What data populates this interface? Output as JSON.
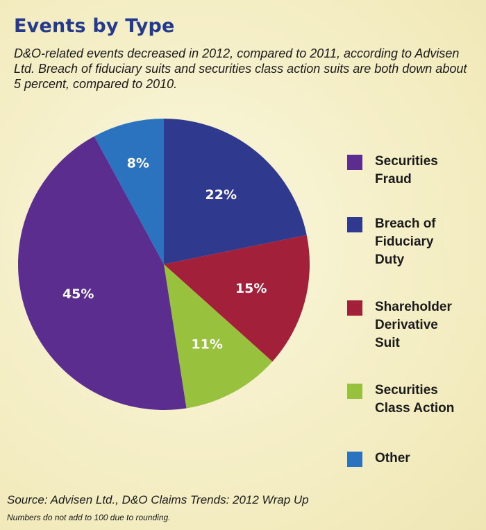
{
  "chart_data": {
    "type": "pie",
    "title": "Events by Type",
    "subtitle": "D&O-related events decreased in 2012, compared to 2011, according to Advisen Ltd. Breach of fiduciary suits and securities class action suits are both down about 5 percent, compared to 2010.",
    "slices": [
      {
        "name": "Securities\nFraud",
        "value": 45,
        "label": "45%",
        "color": "#5b2d8e"
      },
      {
        "name": "Breach of\nFiduciary\nDuty",
        "value": 22,
        "label": "22%",
        "color": "#2f3a8f"
      },
      {
        "name": "Shareholder\nDerivative\nSuit",
        "value": 15,
        "label": "15%",
        "color": "#a3203a"
      },
      {
        "name": "Securities\nClass Action",
        "value": 11,
        "label": "11%",
        "color": "#98c13e"
      },
      {
        "name": "Other",
        "value": 8,
        "label": "8%",
        "color": "#2b73be"
      }
    ],
    "legend_position": "right"
  },
  "source": "Source: Advisen Ltd., D&O Claims Trends: 2012 Wrap Up",
  "note": "Numbers do not add to 100 due to rounding."
}
